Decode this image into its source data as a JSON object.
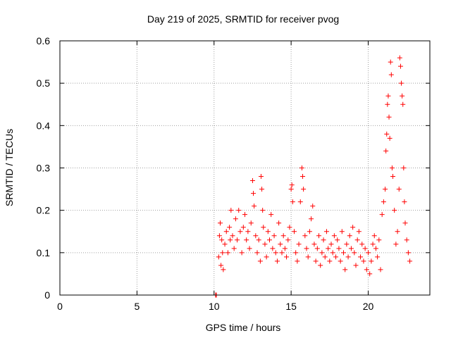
{
  "chart_data": {
    "type": "scatter",
    "title": "Day 219 of 2025, SRMTID for receiver pvog",
    "xlabel": "GPS time / hours",
    "ylabel": "SRMTID / TECUs",
    "xlim": [
      0,
      24
    ],
    "ylim": [
      0,
      0.6
    ],
    "x_ticks": [
      0,
      5,
      10,
      15,
      20
    ],
    "y_ticks": [
      0,
      0.1,
      0.2,
      0.3,
      0.4,
      0.5,
      0.6
    ],
    "x_tick_labels": [
      "0",
      "5",
      "10",
      "15",
      "20"
    ],
    "y_tick_labels": [
      "0",
      "0.1",
      "0.2",
      "0.3",
      "0.4",
      "0.5",
      "0.6"
    ],
    "grid": true,
    "marker": "+",
    "color": "#ff0000",
    "series": [
      {
        "name": "SRMTID",
        "points": [
          [
            10.1,
            0.0
          ],
          [
            10.15,
            0.0
          ],
          [
            10.3,
            0.09
          ],
          [
            10.35,
            0.14
          ],
          [
            10.4,
            0.17
          ],
          [
            10.45,
            0.07
          ],
          [
            10.5,
            0.13
          ],
          [
            10.55,
            0.1
          ],
          [
            10.6,
            0.06
          ],
          [
            10.7,
            0.12
          ],
          [
            10.8,
            0.15
          ],
          [
            10.9,
            0.1
          ],
          [
            11.0,
            0.16
          ],
          [
            11.05,
            0.13
          ],
          [
            11.1,
            0.2
          ],
          [
            11.2,
            0.14
          ],
          [
            11.3,
            0.11
          ],
          [
            11.4,
            0.18
          ],
          [
            11.5,
            0.13
          ],
          [
            11.6,
            0.2
          ],
          [
            11.7,
            0.15
          ],
          [
            11.8,
            0.1
          ],
          [
            11.9,
            0.16
          ],
          [
            12.0,
            0.19
          ],
          [
            12.1,
            0.13
          ],
          [
            12.2,
            0.15
          ],
          [
            12.3,
            0.11
          ],
          [
            12.4,
            0.17
          ],
          [
            12.5,
            0.27
          ],
          [
            12.55,
            0.24
          ],
          [
            12.6,
            0.21
          ],
          [
            12.7,
            0.14
          ],
          [
            12.8,
            0.1
          ],
          [
            12.9,
            0.13
          ],
          [
            13.0,
            0.08
          ],
          [
            13.05,
            0.28
          ],
          [
            13.1,
            0.25
          ],
          [
            13.15,
            0.2
          ],
          [
            13.2,
            0.16
          ],
          [
            13.3,
            0.12
          ],
          [
            13.4,
            0.09
          ],
          [
            13.5,
            0.15
          ],
          [
            13.6,
            0.13
          ],
          [
            13.7,
            0.19
          ],
          [
            13.8,
            0.11
          ],
          [
            13.9,
            0.14
          ],
          [
            14.0,
            0.1
          ],
          [
            14.1,
            0.08
          ],
          [
            14.2,
            0.17
          ],
          [
            14.3,
            0.12
          ],
          [
            14.4,
            0.1
          ],
          [
            14.5,
            0.14
          ],
          [
            14.6,
            0.11
          ],
          [
            14.7,
            0.09
          ],
          [
            14.8,
            0.13
          ],
          [
            14.9,
            0.16
          ],
          [
            15.0,
            0.25
          ],
          [
            15.05,
            0.26
          ],
          [
            15.1,
            0.22
          ],
          [
            15.2,
            0.15
          ],
          [
            15.3,
            0.1
          ],
          [
            15.4,
            0.08
          ],
          [
            15.5,
            0.12
          ],
          [
            15.6,
            0.22
          ],
          [
            15.7,
            0.3
          ],
          [
            15.75,
            0.28
          ],
          [
            15.8,
            0.25
          ],
          [
            15.9,
            0.14
          ],
          [
            16.0,
            0.11
          ],
          [
            16.1,
            0.09
          ],
          [
            16.2,
            0.15
          ],
          [
            16.3,
            0.18
          ],
          [
            16.4,
            0.21
          ],
          [
            16.5,
            0.12
          ],
          [
            16.6,
            0.08
          ],
          [
            16.7,
            0.11
          ],
          [
            16.8,
            0.14
          ],
          [
            16.9,
            0.07
          ],
          [
            17.0,
            0.1
          ],
          [
            17.1,
            0.13
          ],
          [
            17.2,
            0.09
          ],
          [
            17.3,
            0.15
          ],
          [
            17.4,
            0.11
          ],
          [
            17.5,
            0.08
          ],
          [
            17.6,
            0.12
          ],
          [
            17.7,
            0.1
          ],
          [
            17.8,
            0.14
          ],
          [
            17.9,
            0.09
          ],
          [
            18.0,
            0.13
          ],
          [
            18.1,
            0.11
          ],
          [
            18.2,
            0.08
          ],
          [
            18.3,
            0.15
          ],
          [
            18.4,
            0.1
          ],
          [
            18.5,
            0.06
          ],
          [
            18.6,
            0.12
          ],
          [
            18.7,
            0.09
          ],
          [
            18.8,
            0.14
          ],
          [
            18.9,
            0.11
          ],
          [
            19.0,
            0.16
          ],
          [
            19.1,
            0.1
          ],
          [
            19.2,
            0.07
          ],
          [
            19.3,
            0.13
          ],
          [
            19.4,
            0.15
          ],
          [
            19.5,
            0.09
          ],
          [
            19.6,
            0.12
          ],
          [
            19.7,
            0.08
          ],
          [
            19.8,
            0.11
          ],
          [
            19.9,
            0.06
          ],
          [
            20.0,
            0.1
          ],
          [
            20.1,
            0.05
          ],
          [
            20.2,
            0.08
          ],
          [
            20.3,
            0.12
          ],
          [
            20.4,
            0.14
          ],
          [
            20.5,
            0.11
          ],
          [
            20.6,
            0.09
          ],
          [
            20.7,
            0.13
          ],
          [
            20.8,
            0.06
          ],
          [
            20.9,
            0.19
          ],
          [
            21.0,
            0.22
          ],
          [
            21.1,
            0.25
          ],
          [
            21.15,
            0.34
          ],
          [
            21.2,
            0.38
          ],
          [
            21.25,
            0.45
          ],
          [
            21.3,
            0.47
          ],
          [
            21.35,
            0.42
          ],
          [
            21.4,
            0.37
          ],
          [
            21.45,
            0.55
          ],
          [
            21.5,
            0.52
          ],
          [
            21.55,
            0.3
          ],
          [
            21.6,
            0.28
          ],
          [
            21.7,
            0.2
          ],
          [
            21.8,
            0.12
          ],
          [
            21.9,
            0.15
          ],
          [
            22.0,
            0.25
          ],
          [
            22.05,
            0.56
          ],
          [
            22.1,
            0.54
          ],
          [
            22.15,
            0.5
          ],
          [
            22.2,
            0.47
          ],
          [
            22.25,
            0.45
          ],
          [
            22.3,
            0.3
          ],
          [
            22.35,
            0.22
          ],
          [
            22.4,
            0.17
          ],
          [
            22.5,
            0.13
          ],
          [
            22.6,
            0.1
          ],
          [
            22.7,
            0.08
          ]
        ]
      }
    ]
  }
}
